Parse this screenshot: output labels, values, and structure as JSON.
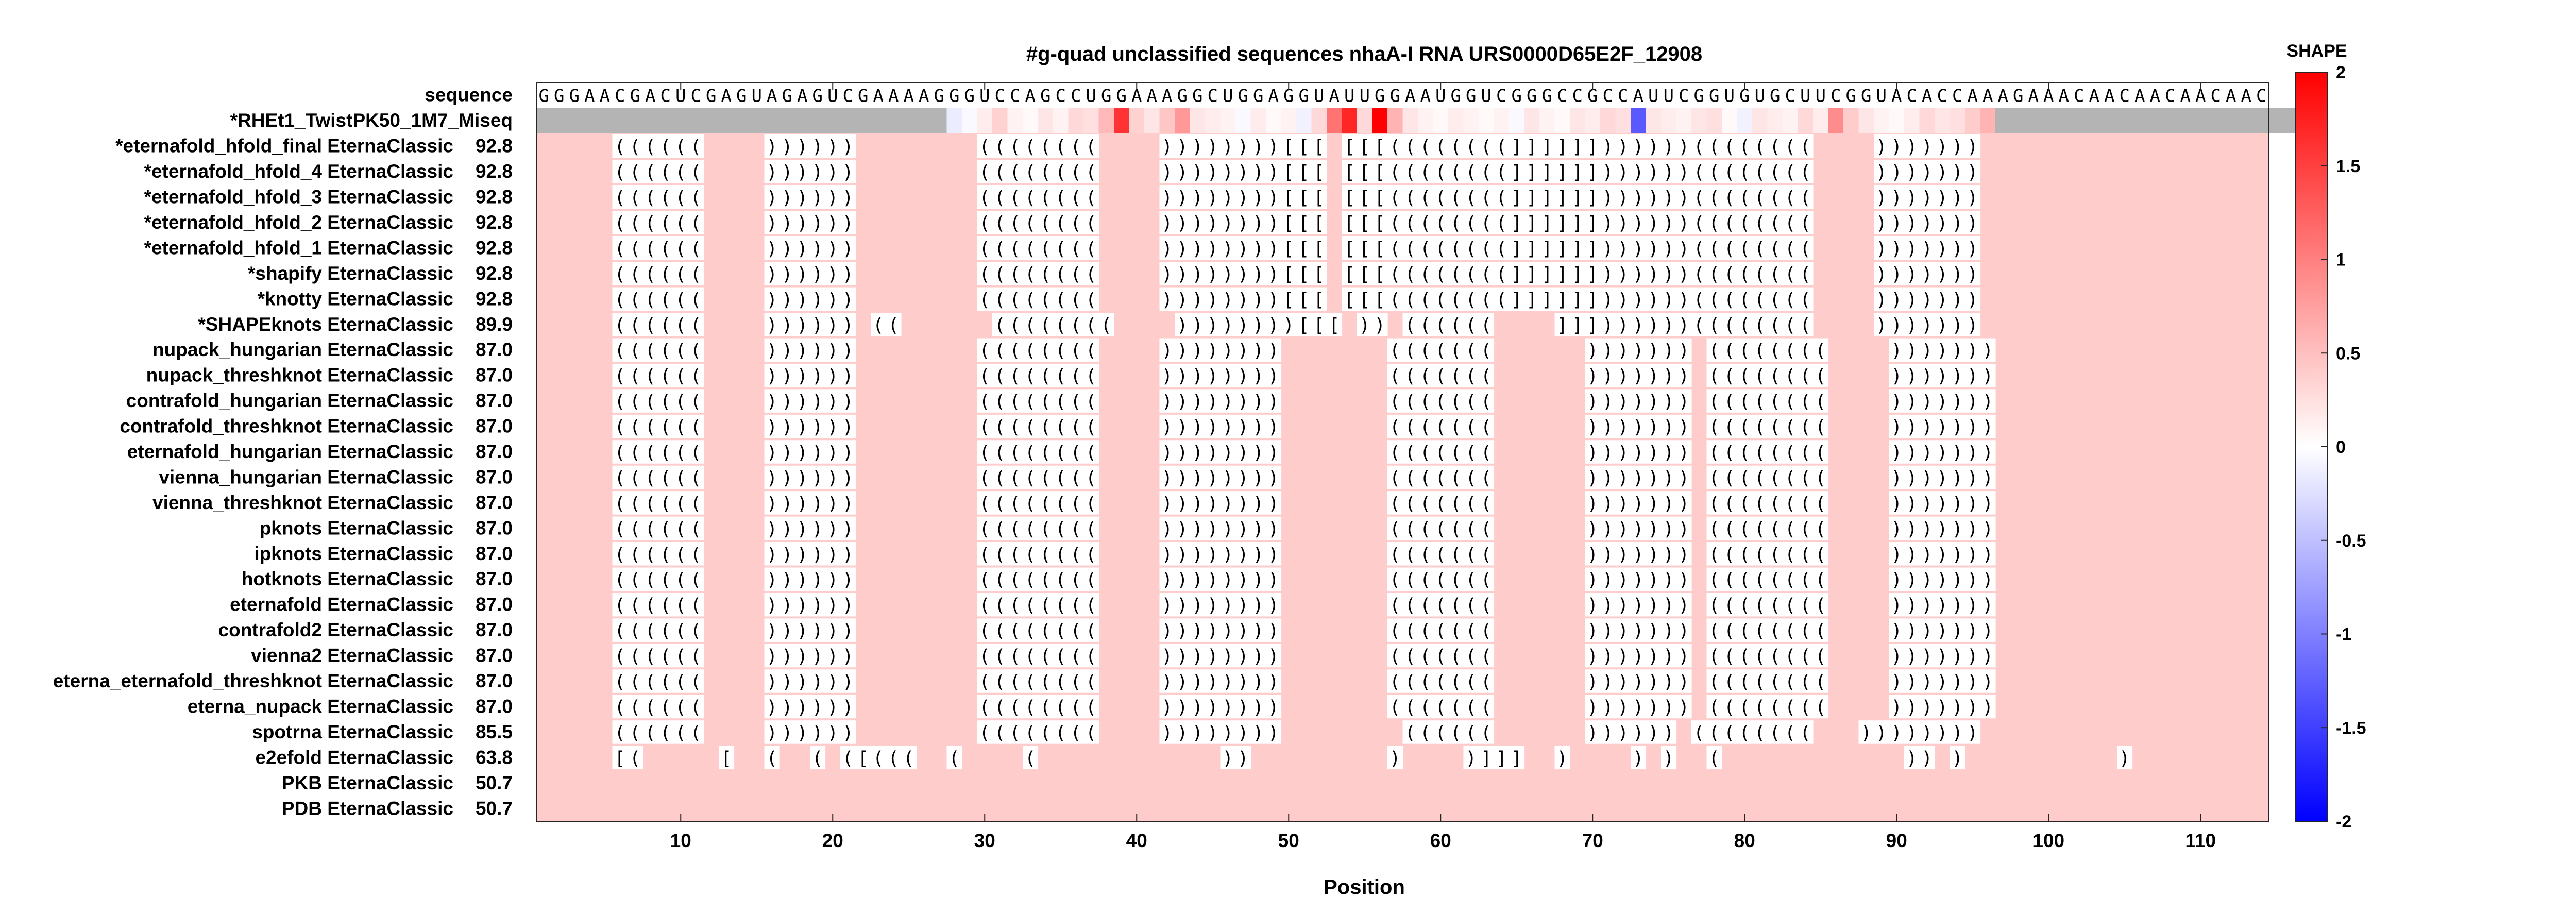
{
  "chart_data": {
    "type": "heatmap",
    "title": "#g-quad unclassified sequences nhaA-I RNA URS0000D65E2F_12908",
    "xlabel": "Position",
    "x_ticks": [
      10,
      20,
      30,
      40,
      50,
      60,
      70,
      80,
      90,
      100,
      110
    ],
    "xlim": [
      1,
      115
    ],
    "sequence_label": "sequence",
    "sequence": "GGGAACGACUCGAGUAGAGUCGAAAAGGGUCCAGCCUGGAAAGGCUGGAGGUAUUGGAAUGGUCGGGCCGCCAUUCGGUGUGCUUCGGUACACCAAAGAAACAACAACAACAAC",
    "shape_label": "*RHEt1_TwistPK50_1M7_Miseq",
    "shape_values": [
      null,
      null,
      null,
      null,
      null,
      null,
      null,
      null,
      null,
      null,
      null,
      null,
      null,
      null,
      null,
      null,
      null,
      null,
      null,
      null,
      null,
      null,
      null,
      null,
      null,
      null,
      null,
      -0.15,
      -0.05,
      0.15,
      0.35,
      0.1,
      0.05,
      0.2,
      0.1,
      0.3,
      0.25,
      0.55,
      1.6,
      0.35,
      0.2,
      0.45,
      0.8,
      0.2,
      0.15,
      0.1,
      -0.05,
      0.15,
      0.05,
      0.1,
      -0.1,
      0.3,
      1.1,
      1.7,
      0.3,
      2.0,
      0.6,
      0.2,
      0.1,
      0.05,
      0.15,
      0.1,
      0.05,
      0.1,
      -0.05,
      0.2,
      0.1,
      0.05,
      0.2,
      0.15,
      0.3,
      0.25,
      -1.3,
      0.2,
      0.15,
      0.1,
      0.2,
      0.25,
      0.05,
      -0.1,
      0.2,
      0.15,
      0.1,
      0.3,
      0.15,
      0.9,
      0.4,
      0.2,
      0.1,
      0.05,
      0.15,
      0.3,
      0.2,
      0.25,
      0.4,
      0.6,
      null,
      null,
      null,
      null,
      null,
      null,
      null,
      null,
      null,
      null,
      null,
      null,
      null,
      null,
      null,
      null,
      null,
      null,
      null,
      null
    ],
    "colorbar": {
      "label": "SHAPE",
      "ticks": [
        2,
        1.5,
        1,
        0.5,
        0,
        -0.5,
        -1,
        -1.5,
        -2
      ],
      "range": [
        -2,
        2
      ],
      "colors": {
        "high": "#ff0000",
        "mid": "#ffffff",
        "low": "#0000ff",
        "nodata": "#b4b4b4"
      }
    },
    "unpaired_color": "#ffcccc",
    "paired_color": "#ffffff",
    "structures": [
      {
        "name": "*eternafold_hfold_final EternaClassic",
        "score": "92.8",
        "structure": ".....((((((....))))))........((((((((....))))))))[[[.[[[((((((((]]]]]]))))))((((((((....)))))))....................."
      },
      {
        "name": "*eternafold_hfold_4 EternaClassic",
        "score": "92.8",
        "structure": ".....((((((....))))))........((((((((....))))))))[[[.[[[((((((((]]]]]]))))))((((((((....)))))))....................."
      },
      {
        "name": "*eternafold_hfold_3 EternaClassic",
        "score": "92.8",
        "structure": ".....((((((....))))))........((((((((....))))))))[[[.[[[((((((((]]]]]]))))))((((((((....)))))))....................."
      },
      {
        "name": "*eternafold_hfold_2 EternaClassic",
        "score": "92.8",
        "structure": ".....((((((....))))))........((((((((....))))))))[[[.[[[((((((((]]]]]]))))))((((((((....)))))))....................."
      },
      {
        "name": "*eternafold_hfold_1 EternaClassic",
        "score": "92.8",
        "structure": ".....((((((....))))))........((((((((....))))))))[[[.[[[((((((((]]]]]]))))))((((((((....)))))))....................."
      },
      {
        "name": "*shapify EternaClassic",
        "score": "92.8",
        "structure": ".....((((((....))))))........((((((((....))))))))[[[.[[[((((((((]]]]]]))))))((((((((....)))))))....................."
      },
      {
        "name": "*knotty EternaClassic",
        "score": "92.8",
        "structure": ".....((((((....))))))........((((((((....))))))))[[[.[[[((((((((]]]]]]))))))((((((((....)))))))....................."
      },
      {
        "name": "*SHAPEknots EternaClassic",
        "score": "89.9",
        "structure": ".....((((((....)))))).((......((((((((....))))))))[[[.)).((((((....]]]))))))((((((((....)))))))....................."
      },
      {
        "name": "nupack_hungarian EternaClassic",
        "score": "87.0",
        "structure": ".....((((((....))))))........((((((((....)))))))).......(((((((......))))))).((((((((....)))))))....................."
      },
      {
        "name": "nupack_threshknot EternaClassic",
        "score": "87.0",
        "structure": ".....((((((....))))))........((((((((....)))))))).......(((((((......))))))).((((((((....)))))))....................."
      },
      {
        "name": "contrafold_hungarian EternaClassic",
        "score": "87.0",
        "structure": ".....((((((....))))))........((((((((....)))))))).......(((((((......))))))).((((((((....)))))))....................."
      },
      {
        "name": "contrafold_threshknot EternaClassic",
        "score": "87.0",
        "structure": ".....((((((....))))))........((((((((....)))))))).......(((((((......))))))).((((((((....)))))))....................."
      },
      {
        "name": "eternafold_hungarian EternaClassic",
        "score": "87.0",
        "structure": ".....((((((....))))))........((((((((....)))))))).......(((((((......))))))).((((((((....)))))))....................."
      },
      {
        "name": "vienna_hungarian EternaClassic",
        "score": "87.0",
        "structure": ".....((((((....))))))........((((((((....)))))))).......(((((((......))))))).((((((((....)))))))....................."
      },
      {
        "name": "vienna_threshknot EternaClassic",
        "score": "87.0",
        "structure": ".....((((((....))))))........((((((((....)))))))).......(((((((......))))))).((((((((....)))))))....................."
      },
      {
        "name": "pknots EternaClassic",
        "score": "87.0",
        "structure": ".....((((((....))))))........((((((((....)))))))).......(((((((......))))))).((((((((....)))))))....................."
      },
      {
        "name": "ipknots EternaClassic",
        "score": "87.0",
        "structure": ".....((((((....))))))........((((((((....)))))))).......(((((((......))))))).((((((((....)))))))....................."
      },
      {
        "name": "hotknots EternaClassic",
        "score": "87.0",
        "structure": ".....((((((....))))))........((((((((....)))))))).......(((((((......))))))).((((((((....)))))))....................."
      },
      {
        "name": "eternafold EternaClassic",
        "score": "87.0",
        "structure": ".....((((((....))))))........((((((((....)))))))).......(((((((......))))))).((((((((....)))))))....................."
      },
      {
        "name": "contrafold2 EternaClassic",
        "score": "87.0",
        "structure": ".....((((((....))))))........((((((((....)))))))).......(((((((......))))))).((((((((....)))))))....................."
      },
      {
        "name": "vienna2 EternaClassic",
        "score": "87.0",
        "structure": ".....((((((....))))))........((((((((....)))))))).......(((((((......))))))).((((((((....)))))))....................."
      },
      {
        "name": "eterna_eternafold_threshknot EternaClassic",
        "score": "87.0",
        "structure": ".....((((((....))))))........((((((((....)))))))).......(((((((......))))))).((((((((....)))))))....................."
      },
      {
        "name": "eterna_nupack EternaClassic",
        "score": "87.0",
        "structure": ".....((((((....))))))........((((((((....)))))))).......(((((((......))))))).((((((((....)))))))....................."
      },
      {
        "name": "spotrna EternaClassic",
        "score": "85.5",
        "structure": ".....((((((....))))))........((((((((....))))))))........((((((......)))))).((((((((...))))))))....................."
      },
      {
        "name": "e2efold EternaClassic",
        "score": "63.8",
        "structure": ".....[(.....[..(..(.([(((..(....(............)).........)....)]]]..)....).)..(............)).)..........)........."
      },
      {
        "name": "PKB EternaClassic",
        "score": "50.7",
        "structure": "..................................................................................................................."
      },
      {
        "name": "PDB EternaClassic",
        "score": "50.7",
        "structure": "..................................................................................................................."
      }
    ]
  }
}
